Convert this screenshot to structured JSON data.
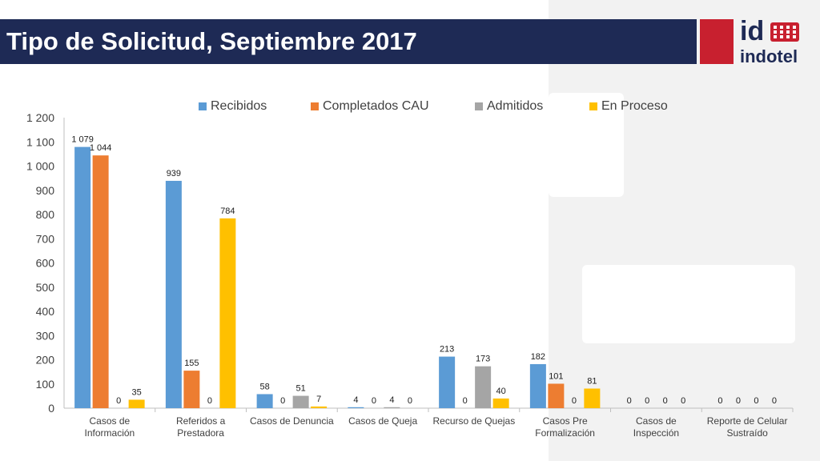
{
  "header": {
    "title": "Tipo de Solicitud, Septiembre 2017"
  },
  "logo": {
    "text_top": "id",
    "text_bottom": "indotel",
    "brand_red": "#c8202f",
    "brand_navy": "#1e2a55"
  },
  "chart_data": {
    "type": "bar",
    "title": "",
    "xlabel": "",
    "ylabel": "",
    "ylim": [
      0,
      1200
    ],
    "yticks": [
      0,
      100,
      200,
      300,
      400,
      500,
      600,
      700,
      800,
      900,
      1000,
      1100,
      1200
    ],
    "ytick_labels": [
      "0",
      "100",
      "200",
      "300",
      "400",
      "500",
      "600",
      "700",
      "800",
      "900",
      "1 000",
      "1 100",
      "1 200"
    ],
    "legend_position": "top",
    "grid": false,
    "categories": [
      [
        "Casos de",
        "Información"
      ],
      [
        "Referidos a",
        "Prestadora"
      ],
      [
        "Casos de Denuncia"
      ],
      [
        "Casos de Queja"
      ],
      [
        "Recurso de Quejas"
      ],
      [
        "Casos Pre",
        "Formalización"
      ],
      [
        "Casos de",
        "Inspección"
      ],
      [
        "Reporte de Celular",
        "Sustraído"
      ]
    ],
    "series": [
      {
        "name": "Recibidos",
        "color": "#5b9bd5",
        "values": [
          1079,
          939,
          58,
          4,
          213,
          182,
          0,
          0
        ],
        "labels": [
          "1 079",
          "939",
          "58",
          "4",
          "213",
          "182",
          "0",
          "0"
        ]
      },
      {
        "name": "Completados CAU",
        "color": "#ed7d31",
        "values": [
          1044,
          155,
          0,
          0,
          0,
          101,
          0,
          0
        ],
        "labels": [
          "1 044",
          "155",
          "0",
          "0",
          "0",
          "101",
          "0",
          "0"
        ]
      },
      {
        "name": "Admitidos",
        "color": "#a5a5a5",
        "values": [
          0,
          0,
          51,
          4,
          173,
          0,
          0,
          0
        ],
        "labels": [
          "0",
          "0",
          "51",
          "4",
          "173",
          "0",
          "0",
          "0"
        ]
      },
      {
        "name": "En Proceso",
        "color": "#ffc000",
        "values": [
          35,
          784,
          7,
          0,
          40,
          81,
          0,
          0
        ],
        "labels": [
          "35",
          "784",
          "7",
          "0",
          "40",
          "81",
          "0",
          "0"
        ]
      }
    ]
  }
}
